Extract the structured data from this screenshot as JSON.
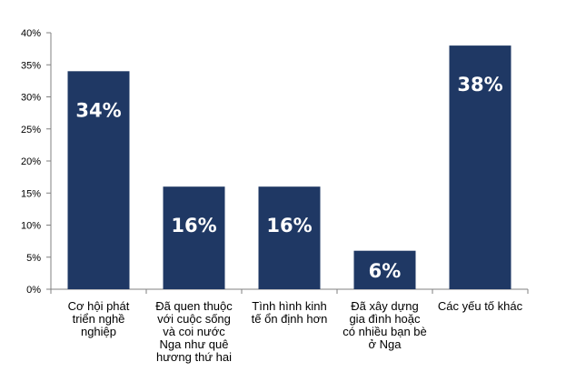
{
  "chart_data": {
    "type": "bar",
    "categories": [
      "Cơ hội phát\ntriển nghề\nnghiệp",
      "Đã quen thuộc\nvới cuộc sống\nvà coi nước\nNga như quê\nhương thứ hai",
      "Tình hình kinh\ntế ổn định hơn",
      "Đã xây dựng\ngia đình hoặc\ncó nhiều bạn bè\nở Nga",
      "Các yếu tố khác"
    ],
    "values": [
      34,
      16,
      16,
      6,
      38
    ],
    "data_labels": [
      "34%",
      "16%",
      "16%",
      "6%",
      "38%"
    ],
    "yticks": [
      "0%",
      "5%",
      "10%",
      "15%",
      "20%",
      "25%",
      "30%",
      "35%",
      "40%"
    ],
    "ylim": [
      0,
      40
    ],
    "grid": false,
    "legend": "none",
    "bar_color": "#1f3864"
  }
}
